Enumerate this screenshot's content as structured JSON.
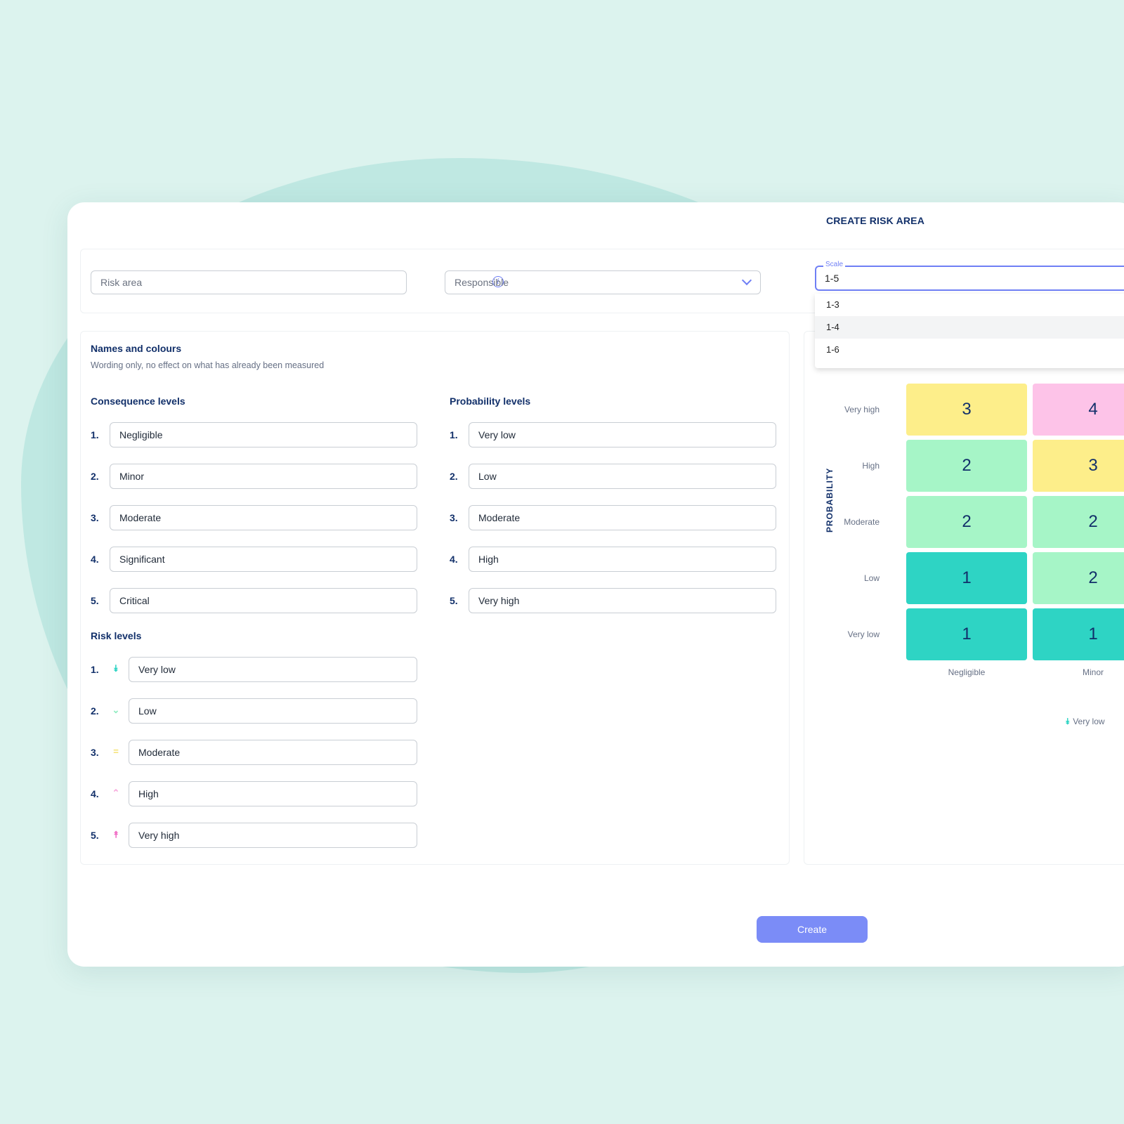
{
  "title": "CREATE RISK AREA",
  "top": {
    "risk_area_placeholder": "Risk area",
    "responsible_placeholder": "Responsible",
    "scale_label": "Scale",
    "scale_value": "1-5",
    "scale_options": [
      "1-3",
      "1-4",
      "1-6"
    ],
    "scale_highlighted": "1-4"
  },
  "names": {
    "heading": "Names and colours",
    "subtitle": "Wording only, no effect on what has already been measured"
  },
  "consequence": {
    "heading": "Consequence levels",
    "items": [
      {
        "num": "1.",
        "value": "Negligible"
      },
      {
        "num": "2.",
        "value": "Minor"
      },
      {
        "num": "3.",
        "value": "Moderate"
      },
      {
        "num": "4.",
        "value": "Significant"
      },
      {
        "num": "5.",
        "value": "Critical"
      }
    ]
  },
  "probability": {
    "heading": "Probability levels",
    "items": [
      {
        "num": "1.",
        "value": "Very low"
      },
      {
        "num": "2.",
        "value": "Low"
      },
      {
        "num": "3.",
        "value": "Moderate"
      },
      {
        "num": "4.",
        "value": "High"
      },
      {
        "num": "5.",
        "value": "Very high"
      }
    ]
  },
  "risk": {
    "heading": "Risk levels",
    "items": [
      {
        "num": "1.",
        "value": "Very low",
        "icon": "double-chevron-down-icon",
        "glyph": "⯯",
        "color": "#2ed4c4"
      },
      {
        "num": "2.",
        "value": "Low",
        "icon": "chevron-down-icon",
        "glyph": "⌄",
        "color": "#8eecc0"
      },
      {
        "num": "3.",
        "value": "Moderate",
        "icon": "equals-icon",
        "glyph": "=",
        "color": "#f5e06a"
      },
      {
        "num": "4.",
        "value": "High",
        "icon": "chevron-up-icon",
        "glyph": "⌃",
        "color": "#f7a8dc"
      },
      {
        "num": "5.",
        "value": "Very high",
        "icon": "double-chevron-up-icon",
        "glyph": "⯭",
        "color": "#f06ac4"
      }
    ]
  },
  "matrix": {
    "axis_label": "PROBABILITY",
    "row_labels": [
      "Very high",
      "High",
      "Moderate",
      "Low",
      "Very low"
    ],
    "col_labels": [
      "Negligible",
      "Minor"
    ],
    "cells": [
      [
        "3",
        "4"
      ],
      [
        "2",
        "3"
      ],
      [
        "2",
        "2"
      ],
      [
        "1",
        "2"
      ],
      [
        "1",
        "1"
      ]
    ],
    "level_colors": {
      "1": "#2ed4c4",
      "2": "#a6f5c7",
      "3": "#fdee8a",
      "4": "#fdc3e8"
    },
    "legend": "Very low"
  },
  "create_label": "Create"
}
